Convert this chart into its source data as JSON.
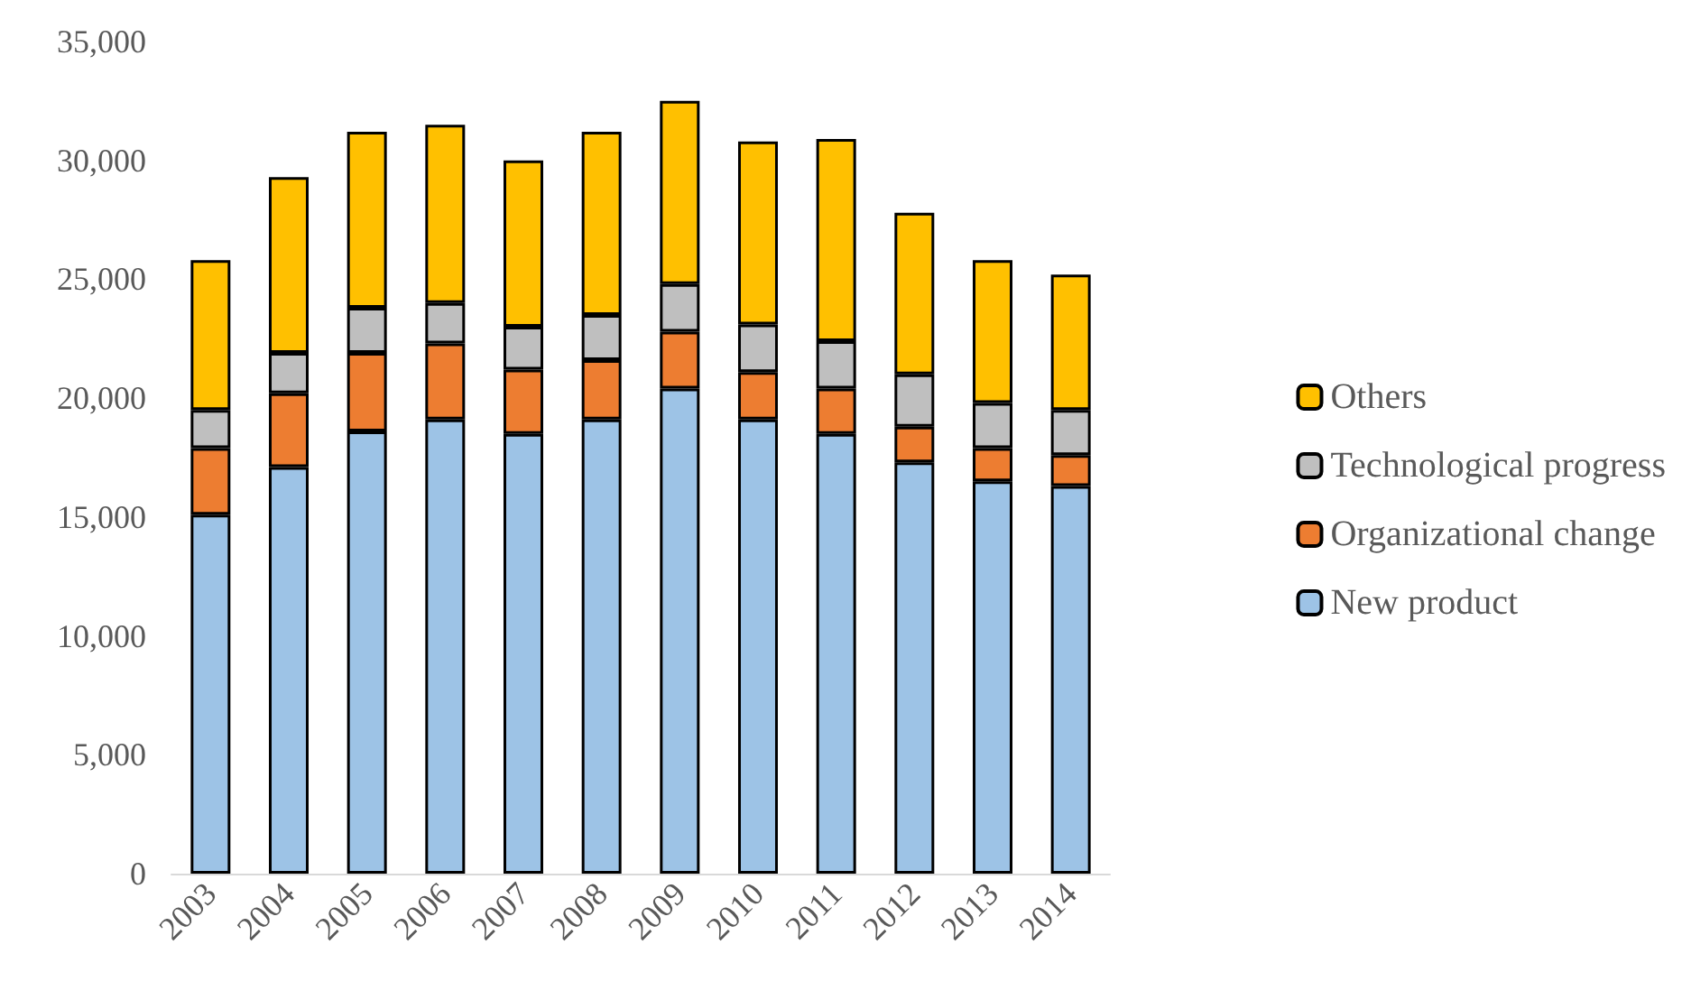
{
  "chart_data": {
    "type": "bar",
    "stacked": true,
    "categories": [
      "2003",
      "2004",
      "2005",
      "2006",
      "2007",
      "2008",
      "2009",
      "2010",
      "2011",
      "2012",
      "2013",
      "2014"
    ],
    "series": [
      {
        "name": "New product",
        "color": "#9dc3e6",
        "values": [
          15100,
          17100,
          18600,
          19100,
          18500,
          19100,
          20400,
          19100,
          18500,
          17300,
          16500,
          16300
        ]
      },
      {
        "name": "Organizational change",
        "color": "#ed7d31",
        "values": [
          2800,
          3100,
          3300,
          3200,
          2700,
          2500,
          2400,
          2000,
          1900,
          1500,
          1400,
          1300
        ]
      },
      {
        "name": "Technological progress",
        "color": "#bfbfbf",
        "values": [
          1600,
          1700,
          1900,
          1700,
          1800,
          1900,
          2000,
          2000,
          2000,
          2200,
          1900,
          1900
        ]
      },
      {
        "name": "Others",
        "color": "#ffc000",
        "values": [
          6300,
          7400,
          7400,
          7500,
          7000,
          7700,
          7700,
          7700,
          8500,
          6800,
          6000,
          5700
        ]
      }
    ],
    "ylim": [
      0,
      35000
    ],
    "yticks": [
      0,
      {
        "value": 5000,
        "label": "5,000"
      },
      {
        "value": 10000,
        "label": "10,000"
      },
      {
        "value": 15000,
        "label": "15,000"
      },
      {
        "value": 20000,
        "label": "20,000"
      },
      {
        "value": 25000,
        "label": "25,000"
      },
      {
        "value": 30000,
        "label": "30,000"
      },
      {
        "value": 35000,
        "label": "35,000"
      }
    ],
    "grid": false,
    "legend": "right"
  }
}
